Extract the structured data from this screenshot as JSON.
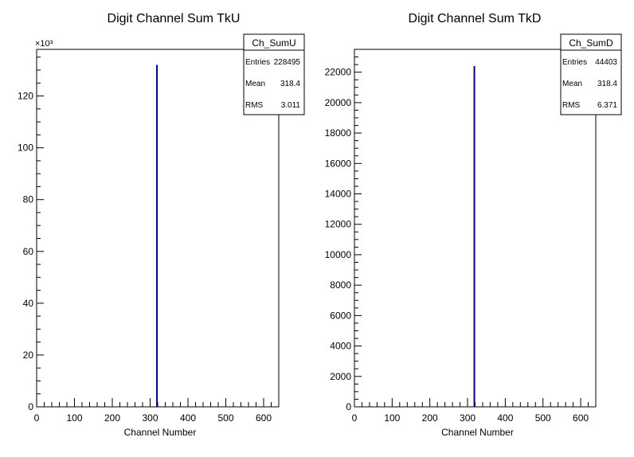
{
  "chart_data": [
    {
      "type": "bar",
      "title": "Digit Channel Sum TkU",
      "xlabel": "Channel Number",
      "ylabel": "",
      "xlim": [
        0,
        640
      ],
      "ylim": [
        0,
        138000
      ],
      "exponent_label": "×10³",
      "x_ticks": [
        "0",
        "100",
        "200",
        "300",
        "400",
        "500",
        "600"
      ],
      "y_ticks": [
        "0",
        "20",
        "40",
        "60",
        "80",
        "100",
        "120"
      ],
      "series": [
        {
          "x": [
            318
          ],
          "values": [
            132000
          ],
          "color": "#000080"
        }
      ],
      "stats": {
        "name": "Ch_SumU",
        "rows": [
          {
            "label": "Entries",
            "value": "228495"
          },
          {
            "label": "Mean",
            "value": "318.4"
          },
          {
            "label": "RMS",
            "value": "3.011"
          }
        ]
      }
    },
    {
      "type": "bar",
      "title": "Digit Channel Sum TkD",
      "xlabel": "Channel Number",
      "ylabel": "",
      "xlim": [
        0,
        640
      ],
      "ylim": [
        0,
        23500
      ],
      "exponent_label": "",
      "x_ticks": [
        "0",
        "100",
        "200",
        "300",
        "400",
        "500",
        "600"
      ],
      "y_ticks": [
        "0",
        "2000",
        "4000",
        "6000",
        "8000",
        "10000",
        "12000",
        "14000",
        "16000",
        "18000",
        "20000",
        "22000"
      ],
      "series": [
        {
          "x": [
            318
          ],
          "values": [
            22400
          ],
          "color": "#000080"
        }
      ],
      "stats": {
        "name": "Ch_SumD",
        "rows": [
          {
            "label": "Entries",
            "value": "44403"
          },
          {
            "label": "Mean",
            "value": "318.4"
          },
          {
            "label": "RMS",
            "value": "6.371"
          }
        ]
      }
    }
  ]
}
